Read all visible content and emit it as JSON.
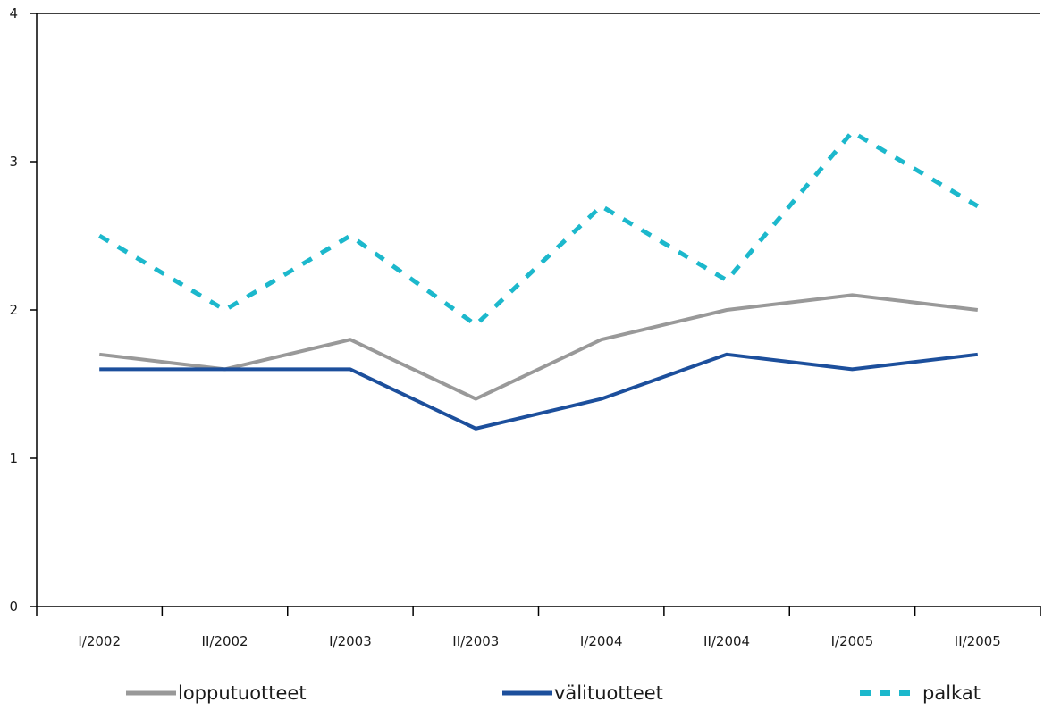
{
  "chart_data": {
    "type": "line",
    "title": "",
    "xlabel": "",
    "ylabel": "",
    "categories": [
      "I/2002",
      "II/2002",
      "I/2003",
      "II/2003",
      "I/2004",
      "II/2004",
      "I/2005",
      "II/2005"
    ],
    "yticks": [
      "0",
      "1",
      "2",
      "3",
      "4"
    ],
    "ylim": [
      0,
      4
    ],
    "grid": false,
    "legend_position": "bottom",
    "series": [
      {
        "name": "lopputuotteet",
        "color": "#999999",
        "style": "solid",
        "values": [
          1.7,
          1.6,
          1.8,
          1.4,
          1.8,
          2.0,
          2.1,
          2.0
        ]
      },
      {
        "name": "välituotteet",
        "color": "#1c4f9c",
        "style": "solid",
        "values": [
          1.6,
          1.6,
          1.6,
          1.2,
          1.4,
          1.7,
          1.6,
          1.7
        ]
      },
      {
        "name": "palkat",
        "color": "#1cb8cc",
        "style": "dashed",
        "values": [
          2.5,
          2.0,
          2.5,
          1.9,
          2.7,
          2.2,
          3.2,
          2.7
        ]
      }
    ]
  },
  "legend": {
    "items": [
      {
        "label": "lopputuotteet"
      },
      {
        "label": "välituotteet"
      },
      {
        "label": "palkat"
      }
    ]
  }
}
